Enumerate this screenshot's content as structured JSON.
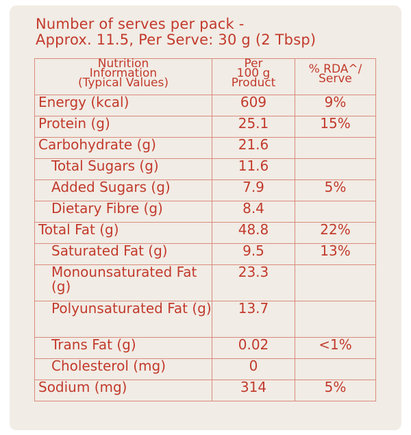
{
  "header": {
    "line1": "Number of serves per pack -",
    "line2": "Approx. 11.5, Per Serve: 30 g (2 Tbsp)"
  },
  "table": {
    "headers": {
      "col1": [
        "Nutrition",
        "Information",
        "(Typical Values)"
      ],
      "col2": [
        "Per",
        "100 g",
        "Product"
      ],
      "col3": [
        "% RDA^/",
        "Serve"
      ]
    },
    "rows": [
      {
        "name": "Energy (kcal)",
        "value": "609",
        "rda": "9%"
      },
      {
        "name": "Protein (g)",
        "value": "25.1",
        "rda": "15%"
      },
      {
        "name": "Carbohydrate (g)",
        "value": "21.6",
        "rda": ""
      },
      {
        "name": "Total Sugars (g)",
        "value": "11.6",
        "rda": ""
      },
      {
        "name": "Added Sugars (g)",
        "value": "7.9",
        "rda": "5%"
      },
      {
        "name": "Dietary Fibre (g)",
        "value": "8.4",
        "rda": ""
      },
      {
        "name": "Total Fat (g)",
        "value": "48.8",
        "rda": "22%"
      },
      {
        "name": "Saturated Fat (g)",
        "value": "9.5",
        "rda": "13%"
      },
      {
        "name": "Monounsaturated Fat (g)",
        "value": "23.3",
        "rda": ""
      },
      {
        "name": "Polyunsaturated Fat (g)",
        "value": "13.7",
        "rda": ""
      },
      {
        "name": "Trans Fat (g)",
        "value": "0.02",
        "rda": "<1%"
      },
      {
        "name": "Cholesterol (mg)",
        "value": "0",
        "rda": ""
      },
      {
        "name": "Sodium (mg)",
        "value": "314",
        "rda": "5%"
      }
    ]
  }
}
